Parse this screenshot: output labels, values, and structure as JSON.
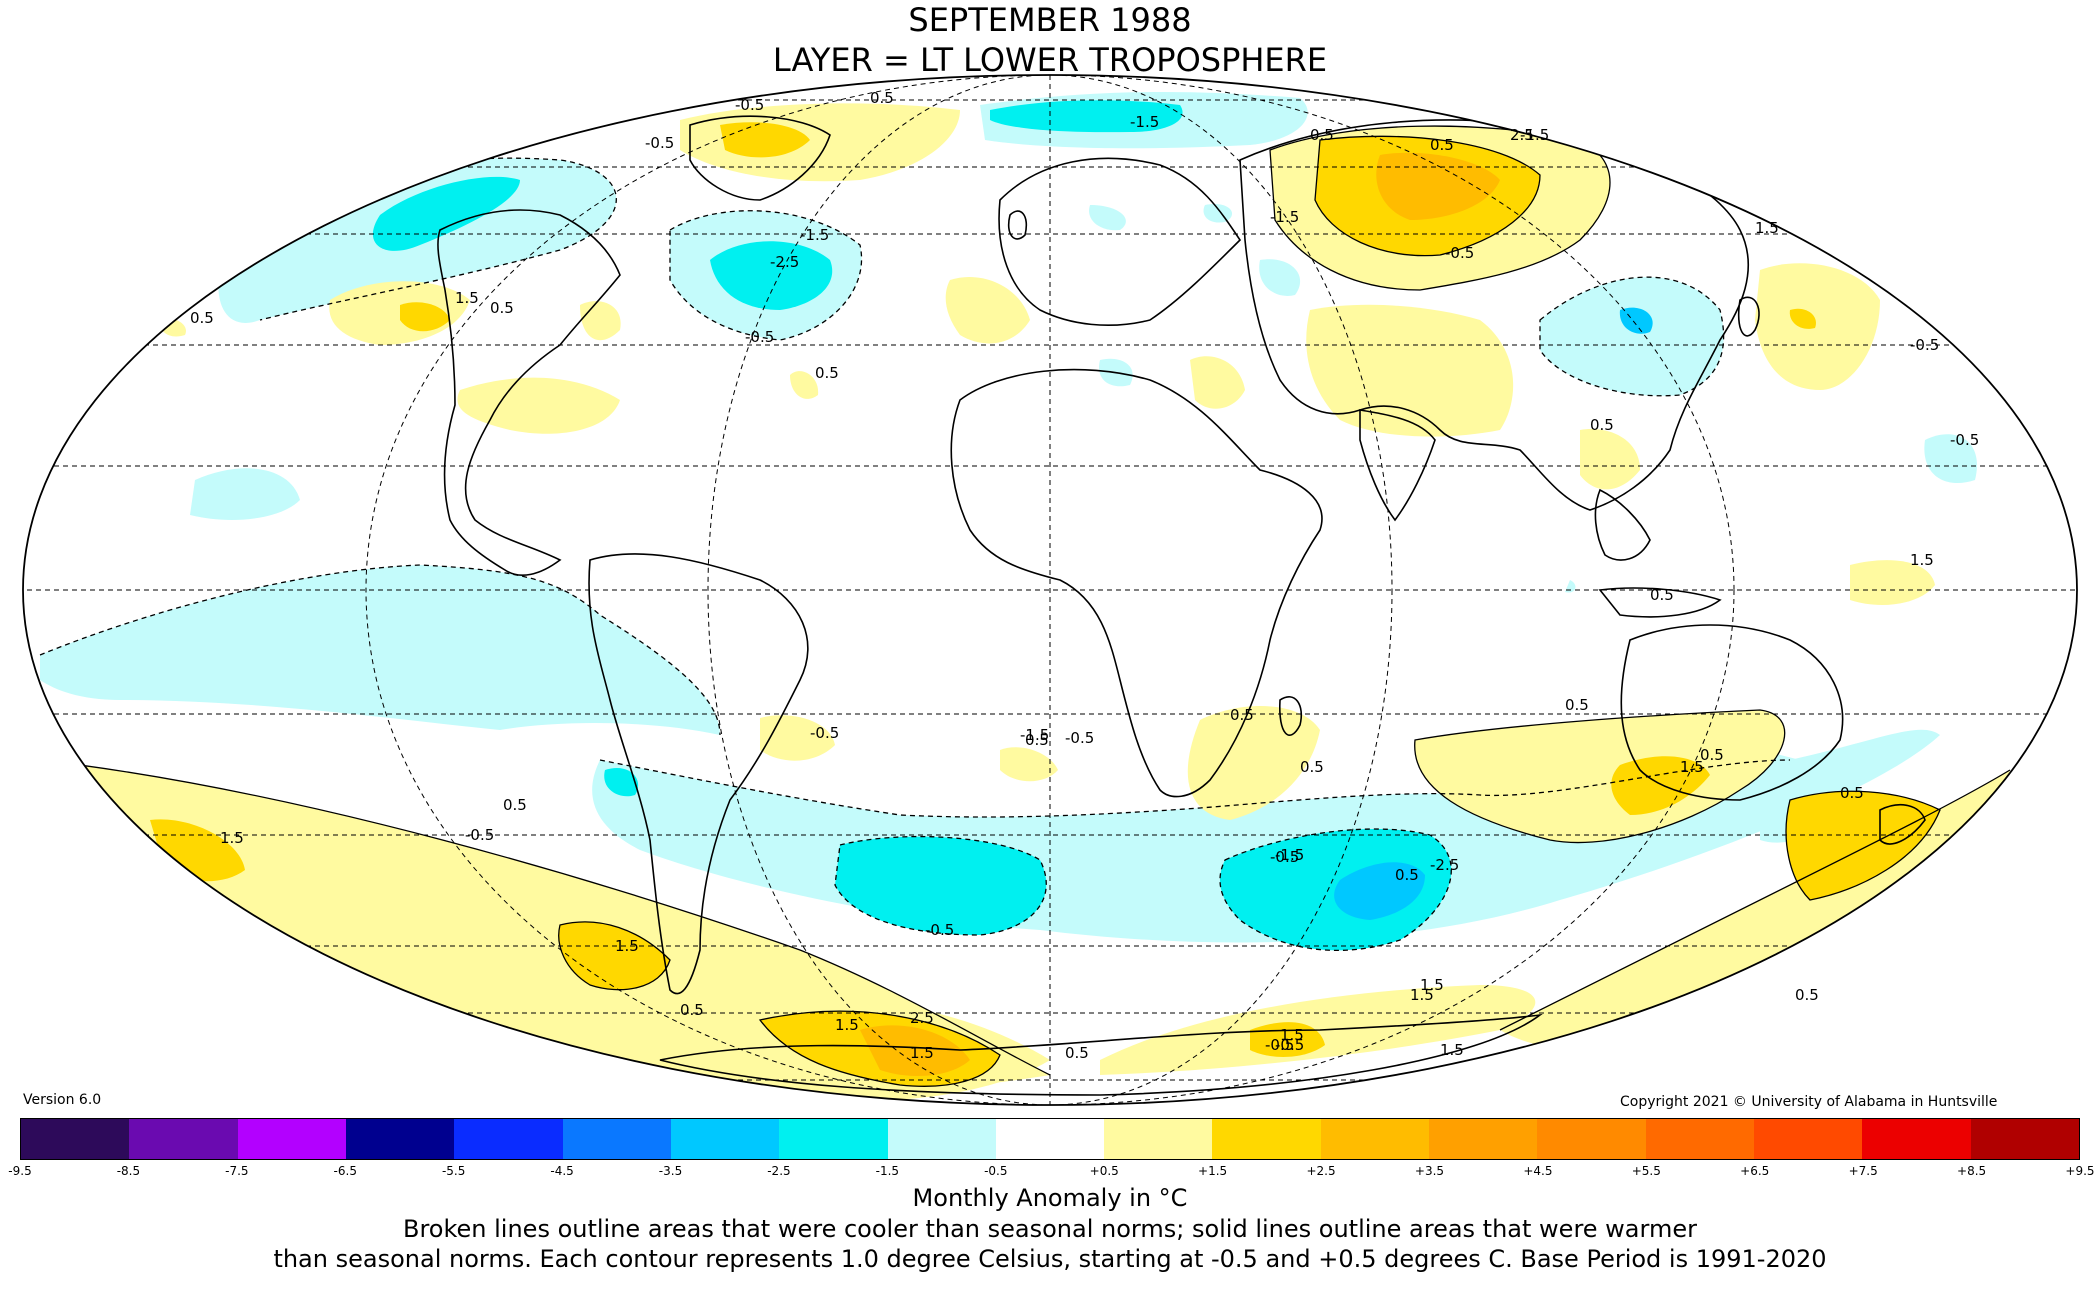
{
  "title": {
    "line1": "SEPTEMBER 1988",
    "line2": "LAYER = LT LOWER TROPOSPHERE"
  },
  "version": "Version 6.0",
  "copyright": "Copyright 2021 © University of Alabama in Huntsville",
  "colorbar": {
    "ticks": [
      "-9.5",
      "-8.5",
      "-7.5",
      "-6.5",
      "-5.5",
      "-4.5",
      "-3.5",
      "-2.5",
      "-1.5",
      "-0.5",
      "+0.5",
      "+1.5",
      "+2.5",
      "+3.5",
      "+4.5",
      "+5.5",
      "+6.5",
      "+7.5",
      "+8.5",
      "+9.5"
    ],
    "colors": [
      "#2d0a5a",
      "#6a0ab0",
      "#b300ff",
      "#00008f",
      "#0a2cff",
      "#0a78ff",
      "#00c8ff",
      "#00f0f0",
      "#c4fbfb",
      "#ffffff",
      "#fffaa0",
      "#ffd800",
      "#ffbc00",
      "#ffa000",
      "#ff8a00",
      "#ff6a00",
      "#ff4a00",
      "#ec0000",
      "#b00000"
    ],
    "label": "Monthly Anomaly in °C"
  },
  "note": {
    "line1": "Broken lines outline areas that were cooler than seasonal norms; solid lines outline areas that were warmer",
    "line2": "than seasonal norms. Each contour represents 1.0 degree Celsius, starting at -0.5 and +0.5 degrees C. Base Period is 1991-2020"
  },
  "map_colors": {
    "cool_1": "#c4fbfb",
    "cool_2": "#00f0f0",
    "cool_3": "#00c8ff",
    "warm_1": "#fffaa0",
    "warm_2": "#ffd800",
    "warm_3": "#ffbc00"
  },
  "contour_labels": [
    "-0.5",
    "0.5",
    "-0.5",
    "-1.5",
    "-2.5",
    "-1.5",
    "0.5",
    "1.5",
    "0.5",
    "-0.5",
    "-1.5",
    "-0.5",
    "0.5",
    "0.5",
    "-1.5",
    "2.5",
    "1.5",
    "-0.5",
    "-0.5",
    "1.5",
    "0.5",
    "0.5",
    "-0.5",
    "0.5",
    "-0.5",
    "1.5",
    "0.5",
    "0.5",
    "-0.5",
    "0.5",
    "0.5",
    "0.5",
    "0.5",
    "-0.5",
    "1.5",
    "1.5",
    "-0.5",
    "0.5",
    "-1.5",
    "-1.5",
    "-2.5",
    "0.5",
    "0.5",
    "1.5",
    "2.5",
    "1.5",
    "0.5",
    "1.5",
    "-0.5",
    "1.5",
    "1.5",
    "-0.5",
    "0.5",
    "1.5"
  ]
}
